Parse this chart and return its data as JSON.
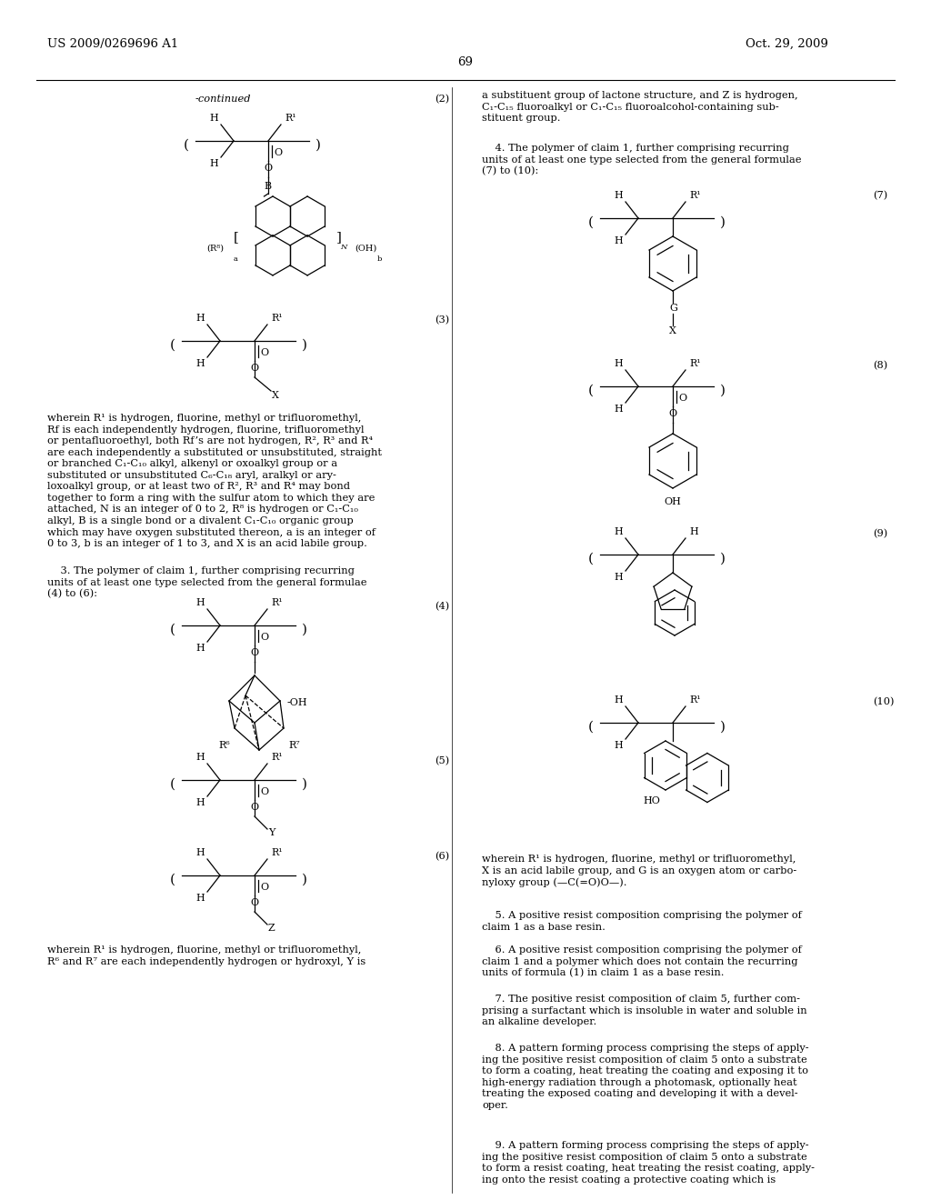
{
  "page_header_left": "US 2009/0269696 A1",
  "page_header_right": "Oct. 29, 2009",
  "page_number": "69",
  "bg": "#ffffff",
  "tc": "#000000",
  "body_left_1": "wherein R¹ is hydrogen, fluorine, methyl or trifluoromethyl,\nRf is each independently hydrogen, fluorine, trifluoromethyl\nor pentafluoroethyl, both Rf’s are not hydrogen, R², R³ and R⁴\nare each independently a substituted or unsubstituted, straight\nor branched C₁-C₁₀ alkyl, alkenyl or oxoalkyl group or a\nsubstituted or unsubstituted C₆-C₁₈ aryl, aralkyl or ary-\nloxoalkyl group, or at least two of R², R³ and R⁴ may bond\ntogether to form a ring with the sulfur atom to which they are\nattached, N is an integer of 0 to 2, R⁸ is hydrogen or C₁-C₁₀\nalkyl, B is a single bond or a divalent C₁-C₁₀ organic group\nwhich may have oxygen substituted thereon, a is an integer of\n0 to 3, b is an integer of 1 to 3, and X is an acid labile group.",
  "body_left_2": "    3. The polymer of claim 1, further comprising recurring\nunits of at least one type selected from the general formulae\n(4) to (6):",
  "body_left_3": "wherein R¹ is hydrogen, fluorine, methyl or trifluoromethyl,\nR⁶ and R⁷ are each independently hydrogen or hydroxyl, Y is",
  "body_right_1": "a substituent group of lactone structure, and Z is hydrogen,\nC₁-C₁₅ fluoroalkyl or C₁-C₁₅ fluoroalcohol-containing sub-\nstituent group.",
  "body_right_2": "    4. The polymer of claim 1, further comprising recurring\nunits of at least one type selected from the general formulae\n(7) to (10):",
  "body_right_3": "wherein R¹ is hydrogen, fluorine, methyl or trifluoromethyl,\nX is an acid labile group, and G is an oxygen atom or carbo-\nnyloxy group (—C(=O)O—).",
  "body_right_4": "    5. A positive resist composition comprising the polymer of\nclaim 1 as a base resin.",
  "body_right_5": "    6. A positive resist composition comprising the polymer of\nclaim 1 and a polymer which does not contain the recurring\nunits of formula (1) in claim 1 as a base resin.",
  "body_right_6": "    7. The positive resist composition of claim 5, further com-\nprising a surfactant which is insoluble in water and soluble in\nan alkaline developer.",
  "body_right_7": "    8. A pattern forming process comprising the steps of apply-\ning the positive resist composition of claim 5 onto a substrate\nto form a coating, heat treating the coating and exposing it to\nhigh-energy radiation through a photomask, optionally heat\ntreating the exposed coating and developing it with a devel-\noper.",
  "body_right_8": "    9. A pattern forming process comprising the steps of apply-\ning the positive resist composition of claim 5 onto a substrate\nto form a resist coating, heat treating the resist coating, apply-\ning onto the resist coating a protective coating which is"
}
